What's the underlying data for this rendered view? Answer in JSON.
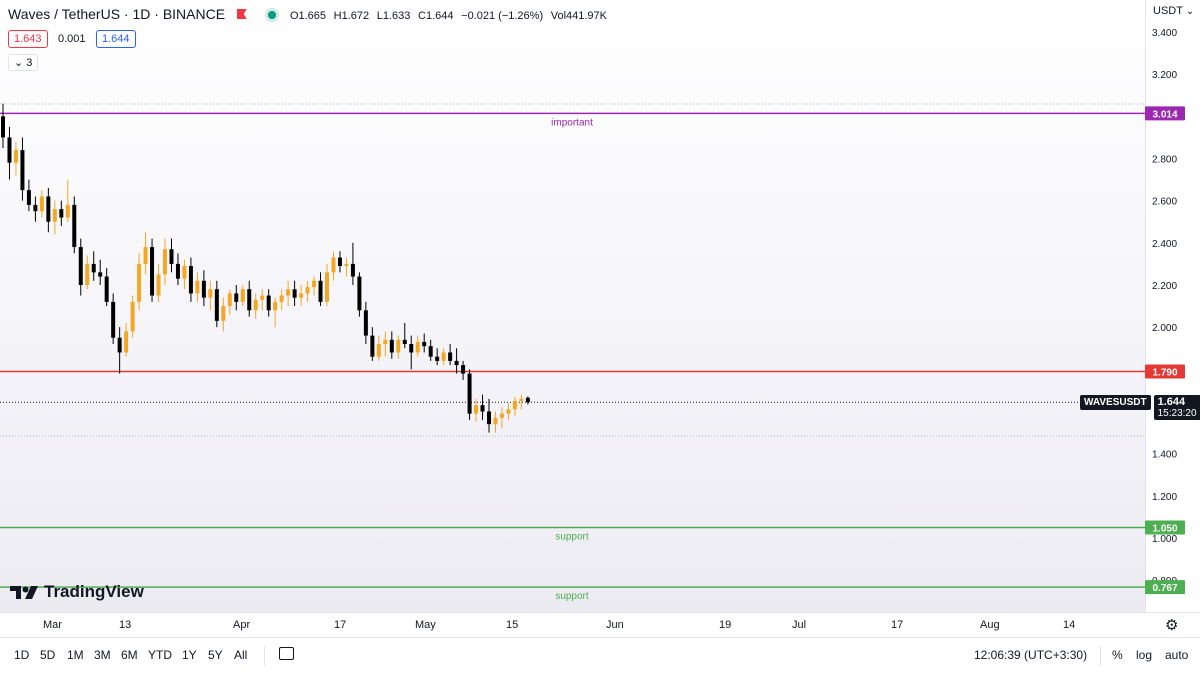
{
  "header": {
    "symbol_title": "Waves / TetherUS · 1D · BINANCE",
    "ohlc": {
      "open": "O1.665",
      "high": "H1.672",
      "low": "L1.633",
      "close": "C1.644",
      "change": "−0.021 (−1.26%)",
      "volume": "Vol441.97K"
    },
    "bid": "1.643",
    "spread": "0.001",
    "ask": "1.644",
    "indicators_count": "3"
  },
  "price_scale": {
    "currency": "USDT",
    "ticks": [
      "3.400",
      "3.200",
      "2.800",
      "2.600",
      "2.400",
      "2.200",
      "2.000",
      "1.400",
      "1.200",
      "1.000",
      "0.800"
    ]
  },
  "time_axis": {
    "labels": [
      "Mar",
      "13",
      "Apr",
      "17",
      "May",
      "15",
      "Jun",
      "19",
      "Jul",
      "17",
      "Aug",
      "14"
    ]
  },
  "watermark": "TradingView",
  "toolbar": {
    "timeframes": [
      "1D",
      "5D",
      "1M",
      "3M",
      "6M",
      "YTD",
      "1Y",
      "5Y",
      "All"
    ],
    "clock": "12:06:39 (UTC+3:30)",
    "percent": "%",
    "log": "log",
    "auto": "auto"
  },
  "colors": {
    "bull": "#f5a623",
    "bear": "#000000",
    "important": "#9c27b0",
    "resistance": "#e53935",
    "support": "#4caf50"
  },
  "chart_data": {
    "type": "candlestick",
    "symbol": "WAVESUSDT",
    "ylim": [
      0.71,
      3.43
    ],
    "levels": [
      {
        "price": 3.014,
        "label": "3.014",
        "note": "important",
        "color": "#9c27b0"
      },
      {
        "price": 1.79,
        "label": "1.790",
        "note": "",
        "color": "#e53935"
      },
      {
        "price": 1.05,
        "label": "1.050",
        "note": "support",
        "color": "#4caf50"
      },
      {
        "price": 0.767,
        "label": "0.767",
        "note": "support",
        "color": "#4caf50"
      }
    ],
    "last_price": {
      "price": 1.644,
      "label": "1.644",
      "countdown": "15:23:20",
      "symbol": "WAVESUSDT"
    },
    "candles": [
      [
        3.0,
        3.06,
        2.85,
        2.9
      ],
      [
        2.9,
        2.95,
        2.7,
        2.78
      ],
      [
        2.78,
        2.88,
        2.72,
        2.84
      ],
      [
        2.84,
        2.9,
        2.6,
        2.65
      ],
      [
        2.65,
        2.7,
        2.55,
        2.58
      ],
      [
        2.58,
        2.62,
        2.5,
        2.55
      ],
      [
        2.55,
        2.65,
        2.52,
        2.62
      ],
      [
        2.62,
        2.66,
        2.45,
        2.5
      ],
      [
        2.5,
        2.6,
        2.44,
        2.56
      ],
      [
        2.56,
        2.6,
        2.48,
        2.52
      ],
      [
        2.52,
        2.7,
        2.5,
        2.58
      ],
      [
        2.58,
        2.62,
        2.35,
        2.38
      ],
      [
        2.38,
        2.42,
        2.15,
        2.2
      ],
      [
        2.2,
        2.34,
        2.18,
        2.3
      ],
      [
        2.3,
        2.36,
        2.22,
        2.26
      ],
      [
        2.26,
        2.32,
        2.2,
        2.24
      ],
      [
        2.24,
        2.28,
        2.1,
        2.12
      ],
      [
        2.12,
        2.16,
        1.92,
        1.95
      ],
      [
        1.95,
        2.0,
        1.78,
        1.88
      ],
      [
        1.88,
        2.02,
        1.86,
        1.98
      ],
      [
        1.98,
        2.15,
        1.95,
        2.12
      ],
      [
        2.12,
        2.35,
        2.08,
        2.3
      ],
      [
        2.3,
        2.45,
        2.25,
        2.38
      ],
      [
        2.38,
        2.42,
        2.12,
        2.15
      ],
      [
        2.15,
        2.3,
        2.12,
        2.25
      ],
      [
        2.25,
        2.42,
        2.2,
        2.37
      ],
      [
        2.37,
        2.42,
        2.26,
        2.3
      ],
      [
        2.3,
        2.35,
        2.2,
        2.23
      ],
      [
        2.23,
        2.32,
        2.18,
        2.29
      ],
      [
        2.29,
        2.33,
        2.12,
        2.16
      ],
      [
        2.16,
        2.26,
        2.12,
        2.22
      ],
      [
        2.22,
        2.27,
        2.1,
        2.14
      ],
      [
        2.14,
        2.22,
        2.08,
        2.18
      ],
      [
        2.18,
        2.22,
        2.0,
        2.03
      ],
      [
        2.03,
        2.14,
        1.98,
        2.1
      ],
      [
        2.1,
        2.18,
        2.06,
        2.16
      ],
      [
        2.16,
        2.2,
        2.08,
        2.12
      ],
      [
        2.12,
        2.2,
        2.1,
        2.18
      ],
      [
        2.18,
        2.22,
        2.05,
        2.08
      ],
      [
        2.08,
        2.16,
        2.04,
        2.13
      ],
      [
        2.13,
        2.18,
        2.08,
        2.15
      ],
      [
        2.15,
        2.18,
        2.05,
        2.08
      ],
      [
        2.08,
        2.14,
        2.0,
        2.12
      ],
      [
        2.12,
        2.18,
        2.08,
        2.15
      ],
      [
        2.15,
        2.22,
        2.1,
        2.18
      ],
      [
        2.18,
        2.22,
        2.1,
        2.14
      ],
      [
        2.14,
        2.2,
        2.1,
        2.16
      ],
      [
        2.16,
        2.22,
        2.12,
        2.19
      ],
      [
        2.19,
        2.24,
        2.15,
        2.22
      ],
      [
        2.22,
        2.26,
        2.1,
        2.12
      ],
      [
        2.12,
        2.3,
        2.1,
        2.26
      ],
      [
        2.26,
        2.36,
        2.22,
        2.33
      ],
      [
        2.33,
        2.36,
        2.26,
        2.29
      ],
      [
        2.29,
        2.33,
        2.24,
        2.3
      ],
      [
        2.3,
        2.4,
        2.2,
        2.24
      ],
      [
        2.24,
        2.26,
        2.05,
        2.08
      ],
      [
        2.08,
        2.12,
        1.92,
        1.96
      ],
      [
        1.96,
        2.0,
        1.84,
        1.86
      ],
      [
        1.86,
        1.96,
        1.84,
        1.92
      ],
      [
        1.92,
        1.98,
        1.86,
        1.94
      ],
      [
        1.94,
        1.98,
        1.85,
        1.88
      ],
      [
        1.88,
        1.96,
        1.85,
        1.94
      ],
      [
        1.94,
        2.02,
        1.9,
        1.92
      ],
      [
        1.92,
        1.96,
        1.8,
        1.88
      ],
      [
        1.88,
        1.96,
        1.86,
        1.93
      ],
      [
        1.93,
        1.97,
        1.88,
        1.91
      ],
      [
        1.91,
        1.94,
        1.84,
        1.86
      ],
      [
        1.86,
        1.9,
        1.82,
        1.84
      ],
      [
        1.84,
        1.9,
        1.82,
        1.88
      ],
      [
        1.88,
        1.92,
        1.82,
        1.84
      ],
      [
        1.84,
        1.9,
        1.78,
        1.82
      ],
      [
        1.82,
        1.84,
        1.75,
        1.78
      ],
      [
        1.78,
        1.8,
        1.56,
        1.59
      ],
      [
        1.59,
        1.66,
        1.55,
        1.63
      ],
      [
        1.63,
        1.68,
        1.56,
        1.6
      ],
      [
        1.6,
        1.66,
        1.5,
        1.54
      ],
      [
        1.54,
        1.6,
        1.5,
        1.57
      ],
      [
        1.57,
        1.62,
        1.52,
        1.59
      ],
      [
        1.59,
        1.64,
        1.56,
        1.61
      ],
      [
        1.61,
        1.67,
        1.58,
        1.65
      ],
      [
        1.65,
        1.68,
        1.61,
        1.66
      ],
      [
        1.665,
        1.672,
        1.633,
        1.644
      ]
    ]
  }
}
